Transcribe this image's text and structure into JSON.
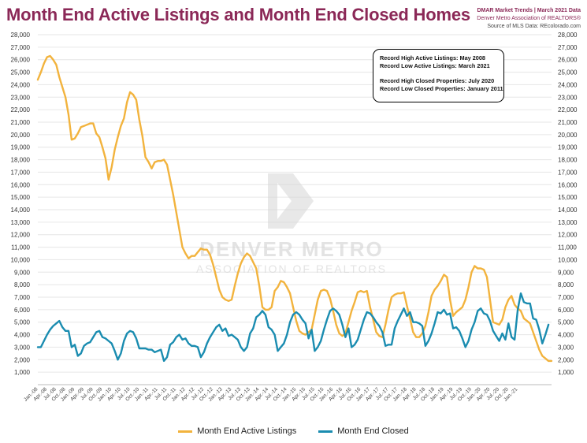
{
  "header": {
    "title": "Month End Active Listings and Month End Closed Homes",
    "source_line1": "DMAR Market Trends | March 2021 Data",
    "source_line2": "Denver Metro Association of REALTORS®",
    "source_line3": "Source of MLS Data: REcolorado.com"
  },
  "watermark": {
    "line1": "DENVER METRO",
    "line2": "ASSOCIATION OF REALTORS"
  },
  "notes": {
    "line1": "Record High Active Listings: May 2008",
    "line2": "Record Low Active Listings: March 2021",
    "line3": "Record High Closed Properties: July 2020",
    "line4": "Record Low Closed Properties: January 2011"
  },
  "legend": {
    "active_label": "Month End Active Listings",
    "closed_label": "Month End Closed"
  },
  "colors": {
    "active": "#f2b33d",
    "closed": "#1a8cb0",
    "title": "#8b2857"
  },
  "chart_data": {
    "type": "line",
    "title": "Month End Active Listings and Month End Closed Homes",
    "ylim": [
      0,
      28000
    ],
    "y_ticks": [
      "1,000",
      "2,000",
      "3,000",
      "4,000",
      "5,000",
      "6,000",
      "7,000",
      "8,000",
      "9,000",
      "10,000",
      "11,000",
      "12,000",
      "13,000",
      "14,000",
      "15,000",
      "16,000",
      "17,000",
      "18,000",
      "19,000",
      "20,000",
      "21,000",
      "22,000",
      "23,000",
      "24,000",
      "25,000",
      "26,000",
      "27,000",
      "28,000"
    ],
    "x_tick_labels": [
      "Jan.-08",
      "Apr.-08",
      "Jul.-08",
      "Oct.-08",
      "Jan.-09",
      "Apr.-09",
      "Jul.-09",
      "Oct.-09",
      "Jan.-10",
      "Apr.-10",
      "Jul.-10",
      "Oct.-10",
      "Jan.-11",
      "Apr.-11",
      "Jul.-11",
      "Oct.-11",
      "Jan.-12",
      "Apr.-12",
      "Jul.-12",
      "Oct.-12",
      "Jan.-13",
      "Apr.-13",
      "Jul.-13",
      "Oct.-13",
      "Jan.-14",
      "Apr.-14",
      "Jul.-14",
      "Oct.-14",
      "Jan.-15",
      "Apr.-15",
      "Jul.-15",
      "Oct.-15",
      "Jan.-16",
      "Apr.-16",
      "Jul.-16",
      "Oct.-16",
      "Jan.-17",
      "Apr.-17",
      "Jul.-17",
      "Oct.-17",
      "Jan.-18",
      "Apr.-18",
      "Jul.-18",
      "Oct.-18",
      "Jan.-19",
      "Apr.-19",
      "Jul.-19",
      "Oct.-19",
      "Jan.-20",
      "Apr.-20",
      "Jul.-20",
      "Oct.-20",
      "Jan.-21"
    ],
    "series": [
      {
        "name": "Month End Active Listings",
        "values": [
          24400,
          25000,
          25700,
          26200,
          26300,
          26000,
          25600,
          24600,
          23800,
          23000,
          21600,
          19600,
          19700,
          20100,
          20600,
          20700,
          20800,
          20900,
          20900,
          20100,
          19800,
          19000,
          18100,
          16400,
          17400,
          18800,
          19800,
          20700,
          21300,
          22600,
          23400,
          23200,
          22800,
          21200,
          19900,
          18200,
          17800,
          17300,
          17800,
          17900,
          17900,
          18000,
          17600,
          16400,
          15200,
          13800,
          12400,
          11000,
          10500,
          10100,
          10300,
          10300,
          10600,
          10900,
          10800,
          10800,
          10400,
          9600,
          8600,
          7600,
          7000,
          6800,
          6700,
          6800,
          7900,
          8900,
          9700,
          10200,
          10500,
          10300,
          9800,
          9300,
          7900,
          6200,
          6000,
          6000,
          6200,
          7500,
          7800,
          8300,
          8200,
          7800,
          7300,
          6200,
          5100,
          4300,
          4100,
          4000,
          4200,
          4400,
          5600,
          6800,
          7500,
          7600,
          7500,
          6900,
          5900,
          4800,
          4100,
          3900,
          4100,
          5000,
          5900,
          6600,
          7400,
          7500,
          7400,
          7500,
          6200,
          5200,
          4200,
          3900,
          3800,
          4800,
          6000,
          7000,
          7200,
          7300,
          7300,
          7400,
          6300,
          5300,
          4200,
          3800,
          3800,
          4100,
          4700,
          5800,
          7100,
          7600,
          7900,
          8300,
          8800,
          8600,
          6800,
          5500,
          5800,
          6000,
          6200,
          6800,
          7800,
          9000,
          9500,
          9300,
          9300,
          9200,
          8600,
          6800,
          5000,
          4900,
          4800,
          5200,
          6200,
          6800,
          7100,
          6400,
          6100,
          5900,
          5300,
          5100,
          4900,
          4200,
          3500,
          2800,
          2300,
          2100,
          1900,
          1900
        ]
      },
      {
        "name": "Month End Closed",
        "values": [
          3000,
          3000,
          3500,
          4000,
          4400,
          4700,
          4900,
          5100,
          4600,
          4300,
          4300,
          3000,
          3200,
          2300,
          2500,
          3100,
          3300,
          3400,
          3800,
          4200,
          4300,
          3800,
          3700,
          3500,
          3300,
          2700,
          2000,
          2500,
          3500,
          4100,
          4300,
          4200,
          3700,
          2900,
          2900,
          2900,
          2800,
          2800,
          2600,
          2700,
          2800,
          1900,
          2200,
          3200,
          3400,
          3800,
          4000,
          3600,
          3700,
          3300,
          3100,
          3100,
          3000,
          2200,
          2600,
          3300,
          3800,
          4200,
          4600,
          4800,
          4300,
          4500,
          3900,
          4000,
          3800,
          3600,
          3000,
          2700,
          3000,
          4100,
          4500,
          5400,
          5600,
          5900,
          5600,
          4600,
          4400,
          4000,
          2700,
          3000,
          3300,
          4000,
          5000,
          5600,
          5800,
          5600,
          5200,
          4900,
          3700,
          4400,
          2700,
          3000,
          3500,
          4400,
          5200,
          5900,
          6100,
          5900,
          5600,
          4800,
          3800,
          4500,
          3000,
          3200,
          3600,
          4400,
          5200,
          5800,
          5700,
          5400,
          5000,
          4700,
          4200,
          3100,
          3200,
          3200,
          4500,
          5100,
          5600,
          6100,
          5500,
          5800,
          5000,
          5000,
          4900,
          4700,
          3100,
          3500,
          4100,
          4900,
          5800,
          5700,
          6000,
          5600,
          5700,
          4500,
          4600,
          4300,
          3700,
          3000,
          3500,
          4400,
          5000,
          5900,
          6100,
          5700,
          5600,
          5100,
          4300,
          3900,
          3500,
          4100,
          3600,
          4900,
          3800,
          3600,
          6000,
          7300,
          6600,
          6500,
          6500,
          5300,
          5200,
          4400,
          3300,
          4000,
          4800
        ]
      }
    ]
  }
}
